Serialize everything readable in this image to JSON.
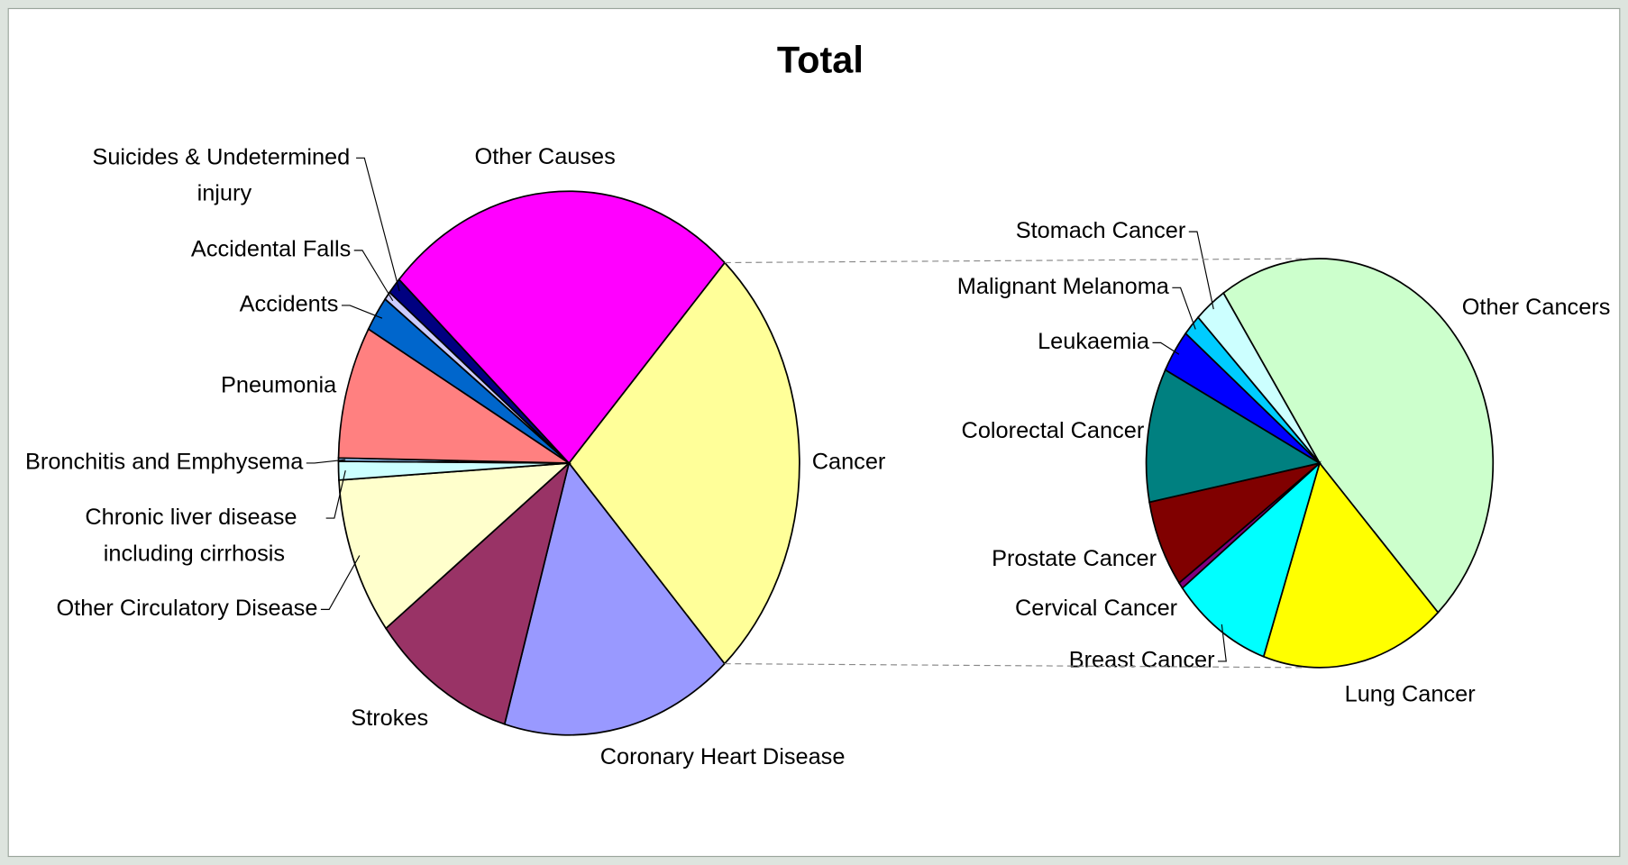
{
  "chart_data": [
    {
      "type": "pie",
      "title": "Total",
      "categories": [
        "Cancer",
        "Coronary Heart Disease",
        "Strokes",
        "Other Circulatory Disease",
        "Chronic liver disease including cirrhosis",
        "Bronchitis and Emphysema",
        "Pneumonia",
        "Accidents",
        "Accidental Falls",
        "Suicides & Undetermined injury",
        "Other Causes"
      ],
      "values": [
        26.4,
        16.3,
        10.1,
        9.4,
        1.1,
        0.2,
        7.9,
        2.1,
        0.5,
        1.0,
        25.0
      ],
      "colors": [
        "#ffff99",
        "#9999ff",
        "#993366",
        "#ffffcc",
        "#ccffff",
        "#99ccff",
        "#ff8080",
        "#0066cc",
        "#ccccff",
        "#000080",
        "#ff00ff"
      ]
    },
    {
      "type": "pie",
      "categories": [
        "Other Cancers",
        "Lung Cancer",
        "Breast Cancer",
        "Cervical Cancer",
        "Prostate Cancer",
        "Colorectal Cancer",
        "Leukaemia",
        "Malignant Melanoma",
        "Stomach Cancer"
      ],
      "values": [
        47.4,
        17.2,
        9.3,
        0.5,
        6.9,
        10.6,
        3.4,
        1.7,
        3.0
      ],
      "colors": [
        "#ccffcc",
        "#ffff00",
        "#00ffff",
        "#800080",
        "#800000",
        "#008080",
        "#0000ff",
        "#00ccff",
        "#ccffff"
      ]
    }
  ]
}
